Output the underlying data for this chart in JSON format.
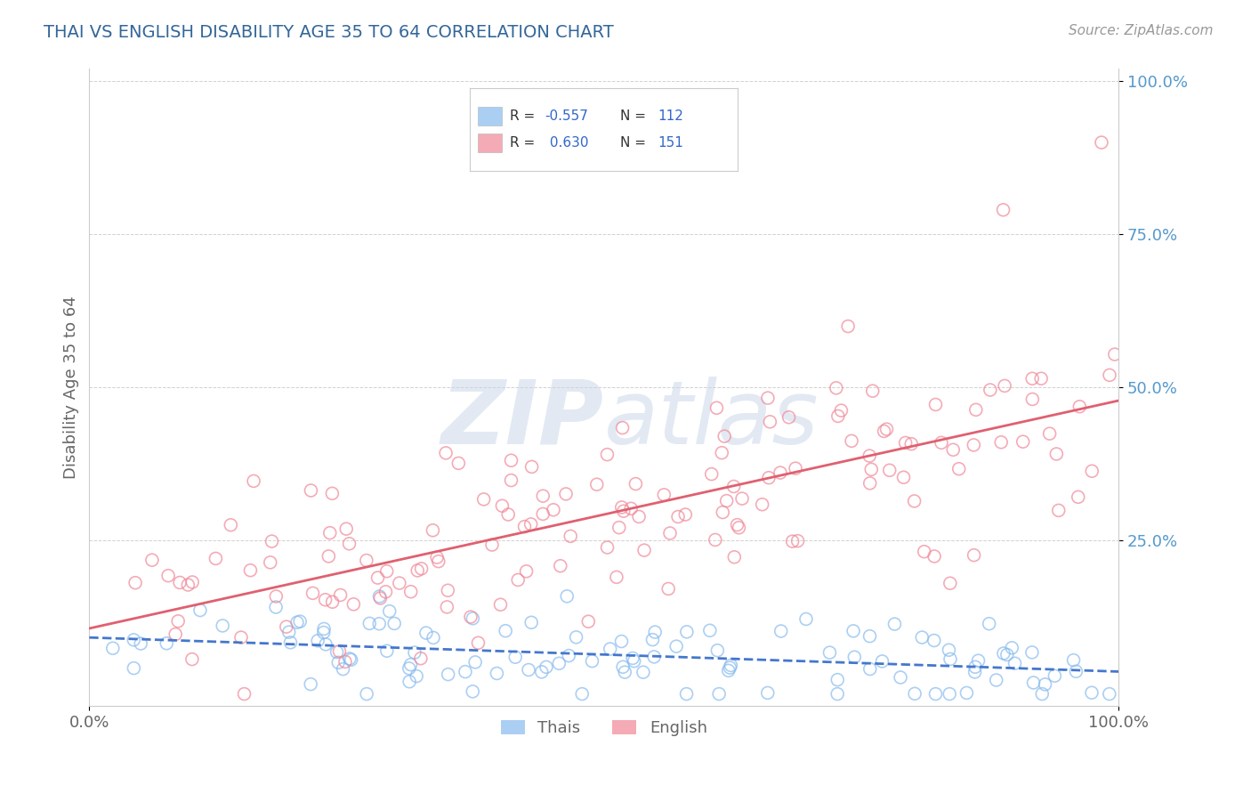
{
  "title": "THAI VS ENGLISH DISABILITY AGE 35 TO 64 CORRELATION CHART",
  "source": "Source: ZipAtlas.com",
  "ylabel": "Disability Age 35 to 64",
  "xlim": [
    0.0,
    1.0
  ],
  "ylim": [
    -0.02,
    1.02
  ],
  "thai_color": "#88bbee",
  "english_color": "#f08898",
  "thai_line_color": "#4477cc",
  "english_line_color": "#e06070",
  "thai_R": -0.557,
  "thai_N": 112,
  "english_R": 0.63,
  "english_N": 151,
  "watermark": "ZIPatlas",
  "background_color": "#ffffff",
  "grid_color": "#cccccc",
  "title_color": "#336699",
  "axis_label_color": "#5599cc",
  "legend_label_thai": "Thais",
  "legend_label_english": "English"
}
